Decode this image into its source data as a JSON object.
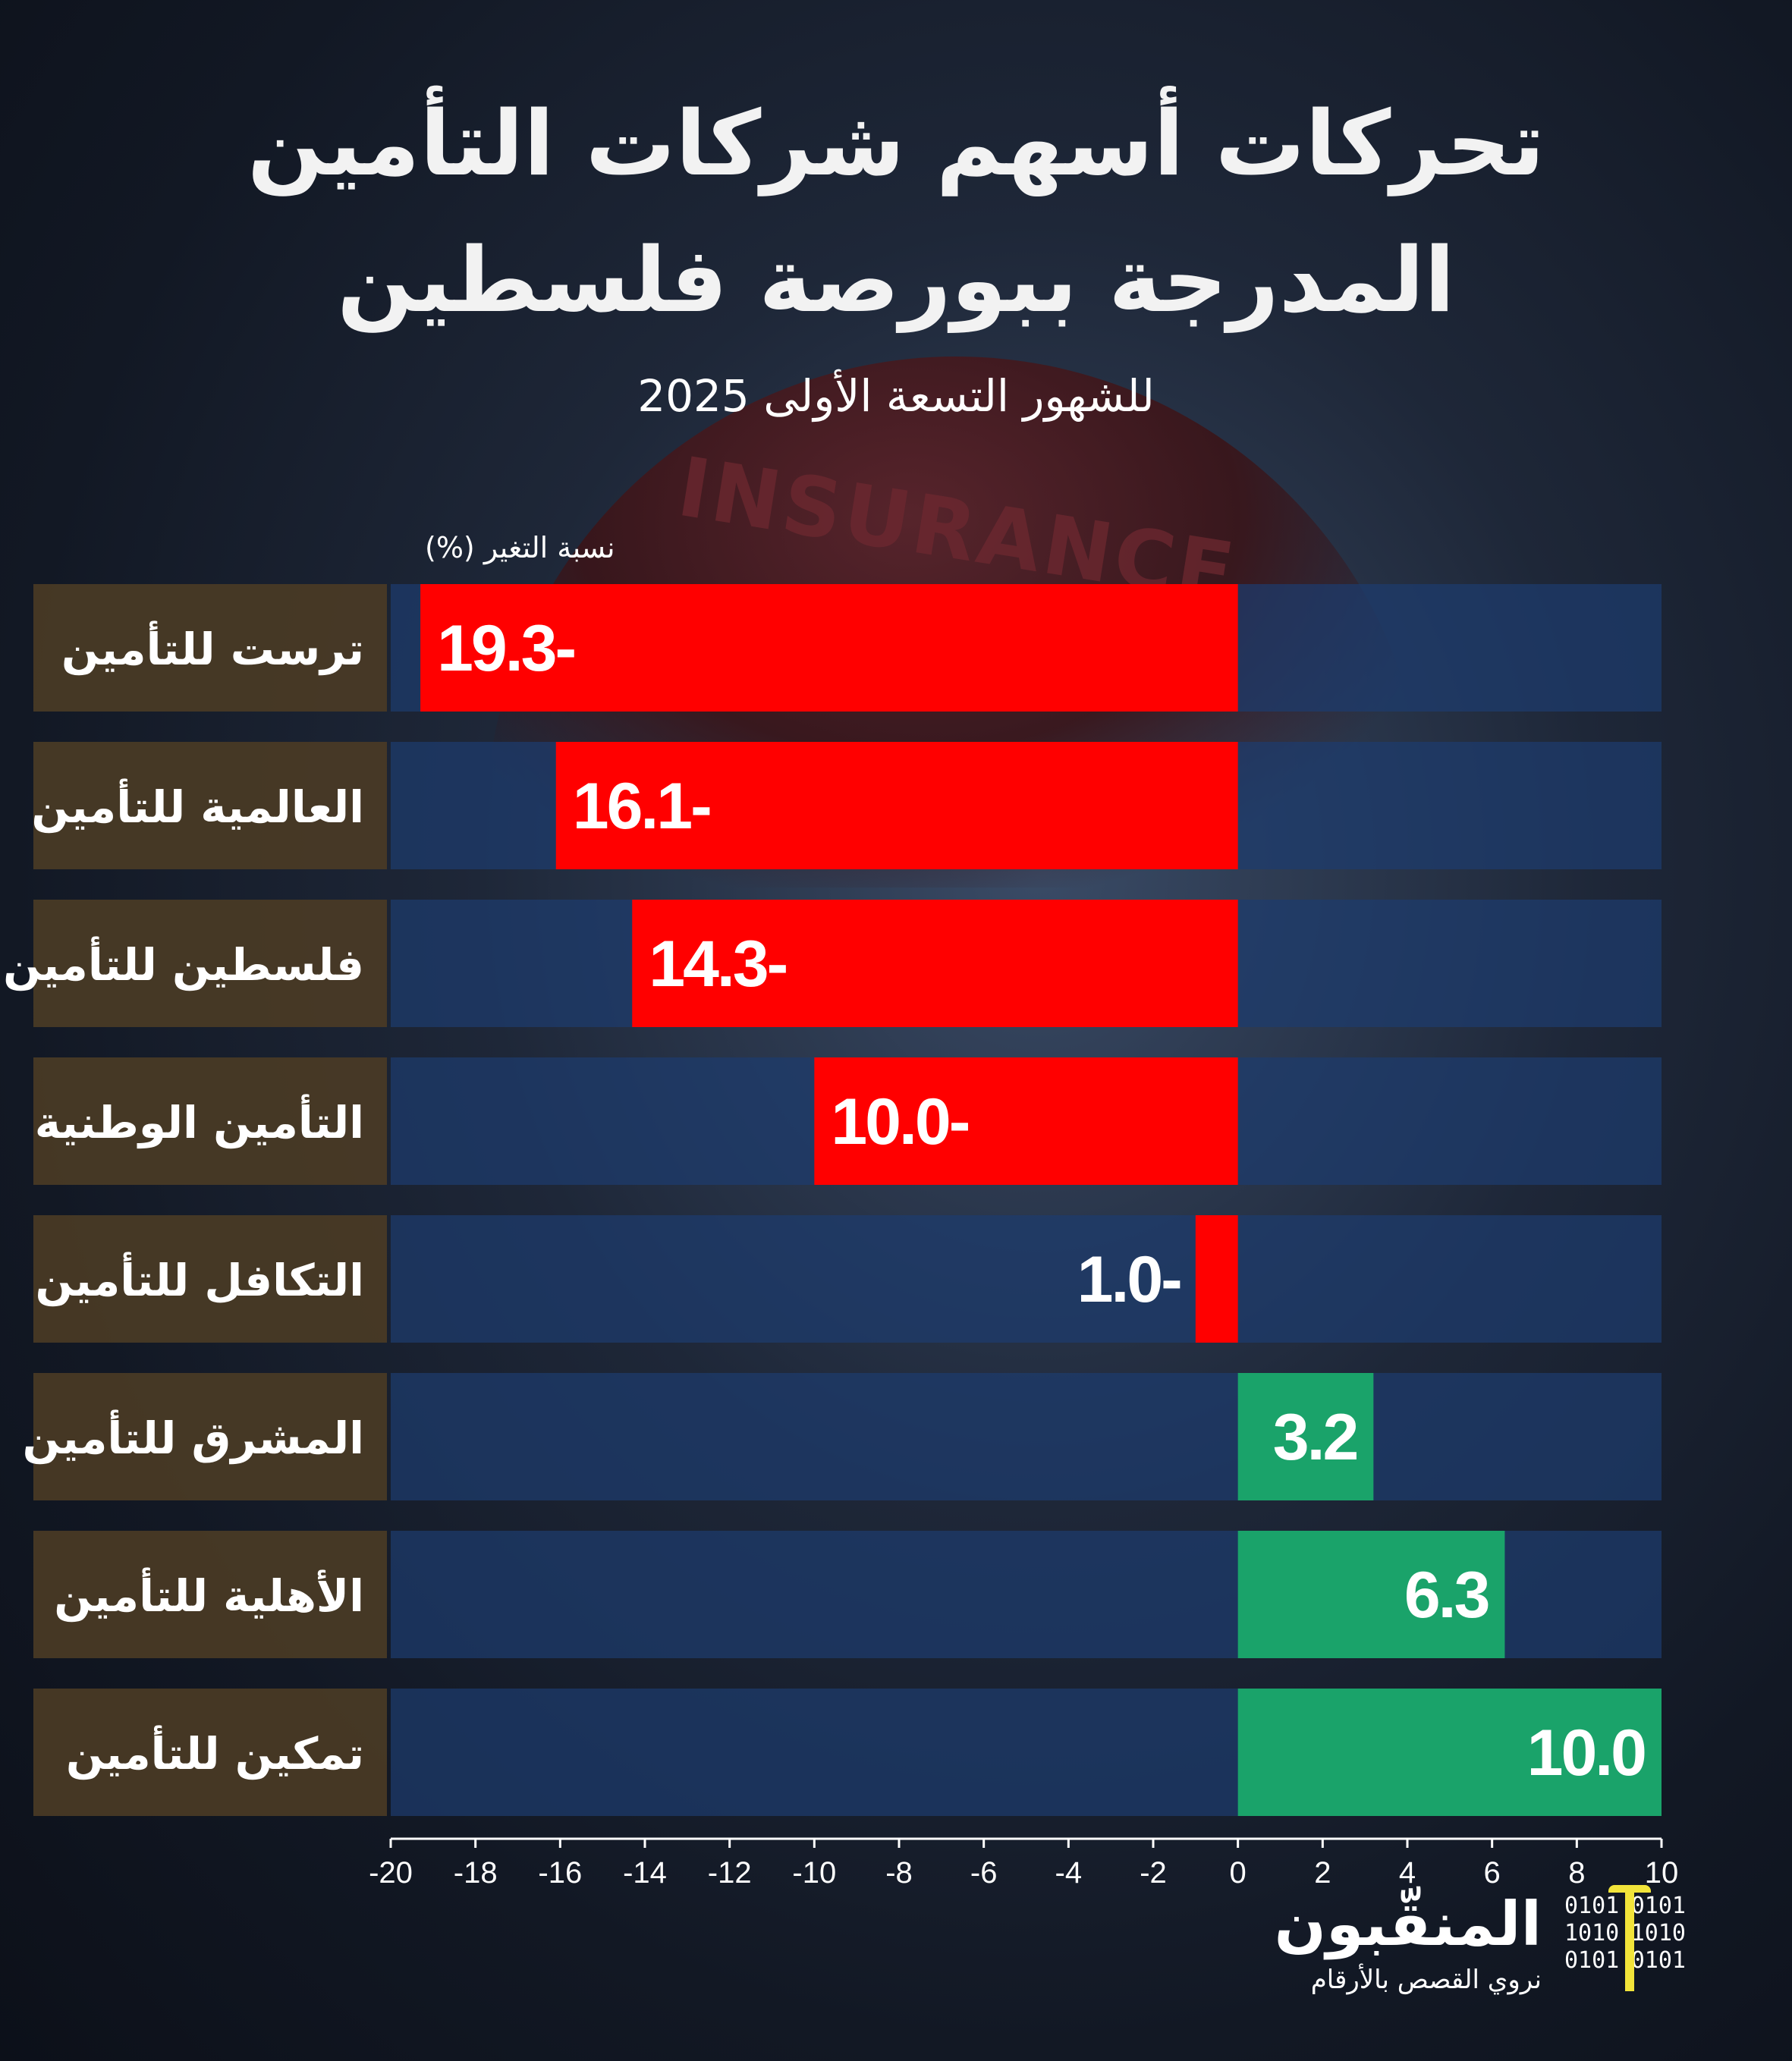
{
  "title_line1": "تحركات أسهم شركات التأمين",
  "title_line2": "المدرجة ببورصة فلسطين",
  "subtitle": "للشهور التسعة الأولى 2025",
  "background_word": "INSURANCE",
  "logo": {
    "name": "المنقّبون",
    "tagline": "نروي القصص بالأرقام",
    "icon_text": [
      "0101",
      "1010",
      "0101"
    ]
  },
  "colors": {
    "negative": "#ff0000",
    "positive": "#1aa36a",
    "row_bg": "#1d3b6e",
    "label_bg": "#4a3b25",
    "text": "#ffffff"
  },
  "chart_data": {
    "type": "bar",
    "orientation": "horizontal",
    "title": "تحركات أسهم شركات التأمين المدرجة ببورصة فلسطين",
    "subtitle": "للشهور التسعة الأولى 2025",
    "xlabel": "نسبة التغير (%)",
    "xlim": [
      -20,
      10
    ],
    "xticks": [
      -20,
      -18,
      -16,
      -14,
      -12,
      -10,
      -8,
      -6,
      -4,
      -2,
      0,
      2,
      4,
      6,
      8,
      10
    ],
    "categories": [
      "ترست للتأمين",
      "العالمية للتأمين",
      "فلسطين للتأمين",
      "التأمين الوطنية",
      "التكافل للتأمين",
      "المشرق للتأمين",
      "الأهلية للتأمين",
      "تمكين للتأمين"
    ],
    "values": [
      -19.3,
      -16.1,
      -14.3,
      -10.0,
      -1.0,
      3.2,
      6.3,
      10.0
    ],
    "value_labels": [
      "19.3-",
      "16.1-",
      "14.3-",
      "10.0-",
      "1.0-",
      "3.2",
      "6.3",
      "10.0"
    ]
  }
}
